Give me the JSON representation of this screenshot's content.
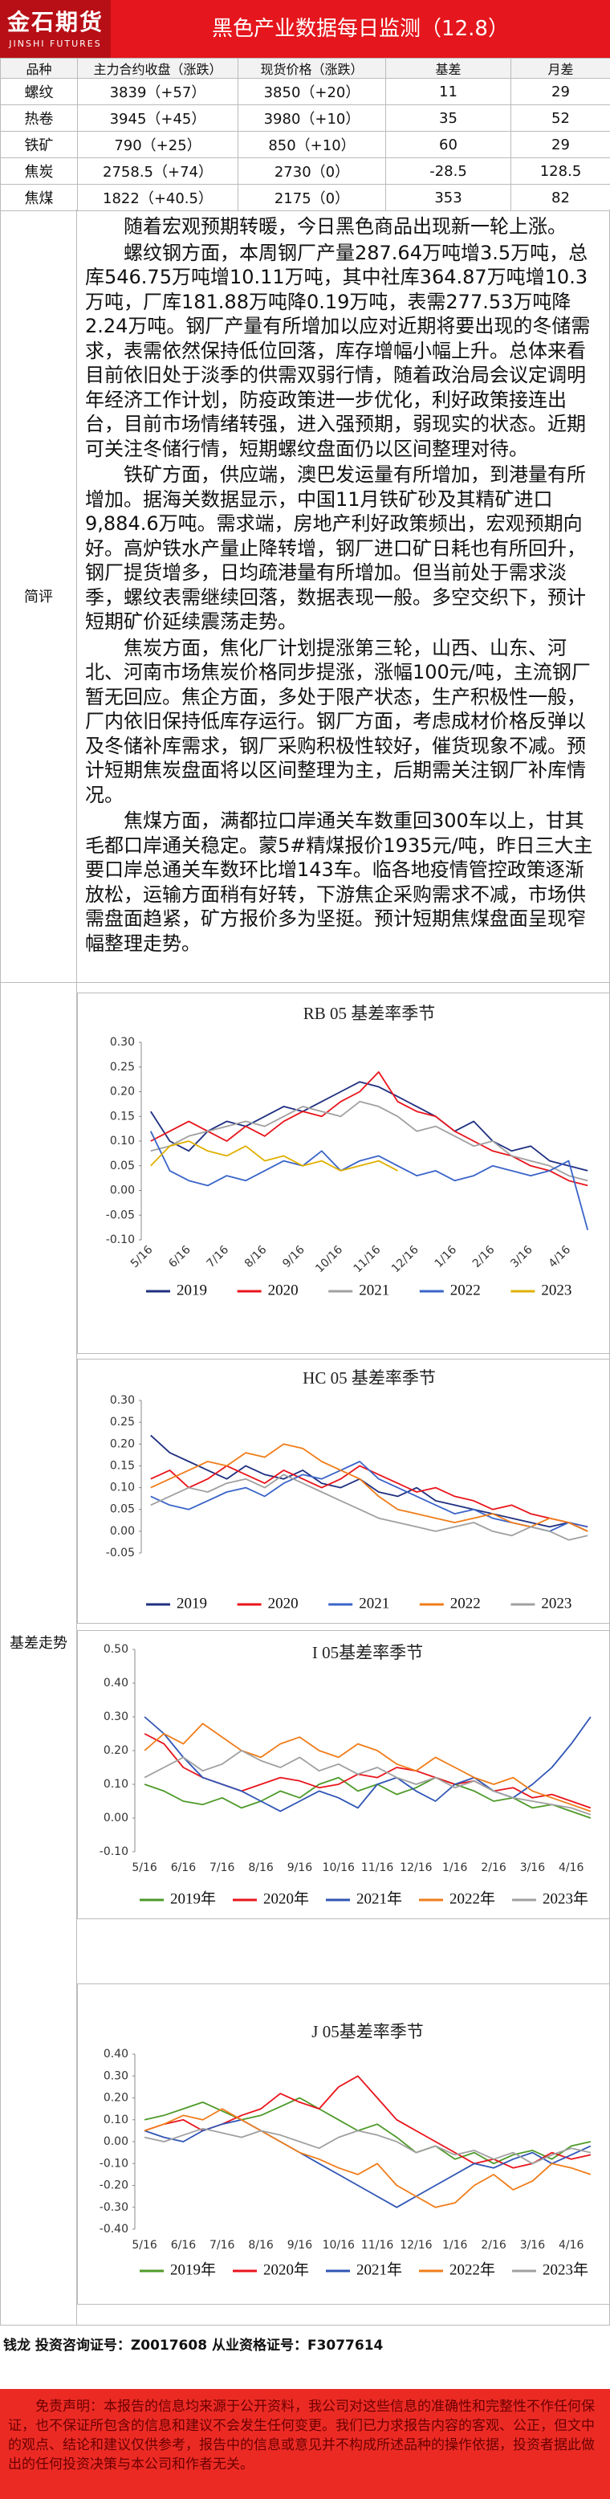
{
  "header": {
    "logo_cn": "金石期货",
    "logo_en": "JINSHI FUTURES",
    "title": "黑色产业数据每日监测（12.8）"
  },
  "table": {
    "columns": [
      "品种",
      "主力合约收盘（涨跌）",
      "现货价格（涨跌）",
      "基差",
      "月差"
    ],
    "rows": [
      [
        "螺纹",
        "3839（+57）",
        "3850（+20）",
        "11",
        "29"
      ],
      [
        "热卷",
        "3945（+45）",
        "3980（+10）",
        "35",
        "52"
      ],
      [
        "铁矿",
        "790（+25）",
        "850（+10）",
        "60",
        "29"
      ],
      [
        "焦炭",
        "2758.5（+74）",
        "2730（0）",
        "-28.5",
        "128.5"
      ],
      [
        "焦煤",
        "1822（+40.5）",
        "2175（0）",
        "353",
        "82"
      ]
    ]
  },
  "review": {
    "label": "简评",
    "paragraphs": [
      "随着宏观预期转暖，今日黑色商品出现新一轮上涨。",
      "螺纹钢方面，本周钢厂产量287.64万吨增3.5万吨，总库546.75万吨增10.11万吨，其中社库364.87万吨增10.3万吨，厂库181.88万吨降0.19万吨，表需277.53万吨降2.24万吨。钢厂产量有所增加以应对近期将要出现的冬储需求，表需依然保持低位回落，库存增幅小幅上升。总体来看目前依旧处于淡季的供需双弱行情，随着政治局会议定调明年经济工作计划，防疫政策进一步优化，利好政策接连出台，目前市场情绪转强，进入强预期，弱现实的状态。近期可关注冬储行情，短期螺纹盘面仍以区间整理对待。",
      "铁矿方面，供应端，澳巴发运量有所增加，到港量有所增加。据海关数据显示，中国11月铁矿砂及其精矿进口9,884.6万吨。需求端，房地产利好政策频出，宏观预期向好。高炉铁水产量止降转增，钢厂进口矿日耗也有所回升，钢厂提货增多，日均疏港量有所增加。但当前处于需求淡季，螺纹表需继续回落，数据表现一般。多空交织下，预计短期矿价延续震荡走势。",
      "焦炭方面，焦化厂计划提涨第三轮，山西、山东、河北、河南市场焦炭价格同步提涨，涨幅100元/吨，主流钢厂暂无回应。焦企方面，多处于限产状态，生产积极性一般，厂内依旧保持低库存运行。钢厂方面，考虑成材价格反弹以及冬储补库需求，钢厂采购积极性较好，催货现象不减。预计短期焦炭盘面将以区间整理为主，后期需关注钢厂补库情况。",
      "焦煤方面，满都拉口岸通关车数重回300车以上，甘其毛都口岸通关稳定。蒙5#精煤报价1935元/吨，昨日三大主要口岸总通关车数环比增143车。临各地疫情管控政策逐渐放松，运输方面稍有好转，下游焦企采购需求不减，市场供需盘面趋紧，矿方报价多为坚挺。预计短期焦煤盘面呈现窄幅整理走势。"
    ]
  },
  "basis_label": "基差走势",
  "chart_data": [
    {
      "type": "line",
      "title": "RB 05 基差率季节",
      "categories": [
        "5/16",
        null,
        "6/16",
        null,
        "7/16",
        null,
        "8/16",
        null,
        "9/16",
        null,
        "10/16",
        null,
        "11/16",
        null,
        "12/16",
        null,
        "1/16",
        null,
        "2/16",
        null,
        "3/16",
        null,
        "4/16",
        null
      ],
      "ylim": [
        -0.1,
        0.3
      ],
      "yticks": [
        {
          "value": 0.3,
          "label": "0.30"
        },
        0.25,
        {
          "value": 0.2,
          "label": "0.20"
        },
        0.15,
        {
          "value": 0.1,
          "label": "0.10"
        },
        0.05,
        {
          "value": 0,
          "label": "0.00"
        },
        -0.05,
        {
          "value": -0.1,
          "label": "-0.10"
        }
      ],
      "series": [
        {
          "name": "2019",
          "color": "#1f2f80",
          "values": [
            0.16,
            0.1,
            0.08,
            0.12,
            0.14,
            0.13,
            0.15,
            0.17,
            0.16,
            0.18,
            0.2,
            0.22,
            0.21,
            0.19,
            0.17,
            0.15,
            0.12,
            0.14,
            0.1,
            0.08,
            0.09,
            0.06,
            0.05,
            0.04
          ]
        },
        {
          "name": "2020",
          "color": "#e8141b",
          "values": [
            0.1,
            0.12,
            0.14,
            0.12,
            0.1,
            0.13,
            0.11,
            0.14,
            0.16,
            0.15,
            0.18,
            0.2,
            0.24,
            0.18,
            0.16,
            0.15,
            0.12,
            0.1,
            0.08,
            0.07,
            0.05,
            0.04,
            0.02,
            0.01
          ]
        },
        {
          "name": "2021",
          "color": "#a0a0a0",
          "values": [
            0.08,
            0.09,
            0.11,
            0.12,
            0.13,
            0.14,
            0.13,
            0.15,
            0.17,
            0.16,
            0.15,
            0.18,
            0.17,
            0.15,
            0.12,
            0.13,
            0.11,
            0.09,
            0.1,
            0.07,
            0.06,
            0.05,
            0.03,
            0.02
          ]
        },
        {
          "name": "2022",
          "color": "#3a64c8",
          "values": [
            0.12,
            0.04,
            0.02,
            0.01,
            0.03,
            0.02,
            0.04,
            0.06,
            0.05,
            0.08,
            0.04,
            0.06,
            0.07,
            0.05,
            0.03,
            0.04,
            0.02,
            0.03,
            0.05,
            0.04,
            0.03,
            0.04,
            0.06,
            -0.08
          ]
        },
        {
          "name": "2023",
          "color": "#e0b000",
          "values": [
            0.05,
            0.09,
            0.1,
            0.08,
            0.07,
            0.09,
            0.06,
            0.07,
            0.05,
            0.06,
            0.04,
            0.05,
            0.06,
            0.04,
            null,
            null,
            null,
            null,
            null,
            null,
            null,
            null,
            null,
            null
          ]
        }
      ]
    },
    {
      "type": "line",
      "title": "HC 05 基差率季节",
      "ylim": [
        -0.05,
        0.3
      ],
      "yticks": [
        {
          "value": 0.3,
          "label": "0.30"
        },
        0.25,
        {
          "value": 0.2,
          "label": "0.20"
        },
        0.15,
        {
          "value": 0.1,
          "label": "0.10"
        },
        0.05,
        {
          "value": 0,
          "label": "0.00"
        },
        -0.05
      ],
      "series": [
        {
          "name": "2019",
          "color": "#1f2f80",
          "values": [
            0.22,
            0.18,
            0.16,
            0.14,
            0.12,
            0.15,
            0.13,
            0.12,
            0.14,
            0.11,
            0.1,
            0.12,
            0.09,
            0.08,
            0.1,
            0.07,
            0.06,
            0.05,
            0.04,
            0.03,
            0.02,
            0.01,
            0.02,
            0.0
          ]
        },
        {
          "name": "2020",
          "color": "#e8141b",
          "values": [
            0.12,
            0.14,
            0.1,
            0.12,
            0.15,
            0.13,
            0.11,
            0.14,
            0.12,
            0.1,
            0.12,
            0.15,
            0.13,
            0.11,
            0.09,
            0.1,
            0.08,
            0.07,
            0.05,
            0.06,
            0.04,
            0.03,
            0.02,
            0.01
          ]
        },
        {
          "name": "2021",
          "color": "#3a64c8",
          "values": [
            0.08,
            0.06,
            0.05,
            0.07,
            0.09,
            0.1,
            0.08,
            0.11,
            0.13,
            0.12,
            0.14,
            0.16,
            0.12,
            0.1,
            0.08,
            0.06,
            0.04,
            0.05,
            0.03,
            0.02,
            0.01,
            0.0,
            0.02,
            0.01
          ]
        },
        {
          "name": "2022",
          "color": "#f07d1a",
          "values": [
            0.1,
            0.12,
            0.14,
            0.16,
            0.15,
            0.18,
            0.17,
            0.2,
            0.19,
            0.16,
            0.14,
            0.12,
            0.08,
            0.05,
            0.04,
            0.03,
            0.02,
            0.03,
            0.04,
            0.02,
            0.01,
            0.03,
            0.02,
            0.0
          ]
        },
        {
          "name": "2023",
          "color": "#a0a0a0",
          "values": [
            0.06,
            0.08,
            0.1,
            0.09,
            0.11,
            0.12,
            0.1,
            0.13,
            0.11,
            0.09,
            0.07,
            0.05,
            0.03,
            0.02,
            0.01,
            0.0,
            0.01,
            0.02,
            0.0,
            -0.01,
            0.01,
            0.0,
            -0.02,
            -0.01
          ]
        }
      ]
    },
    {
      "type": "line",
      "title": "I 05基差率季节",
      "categories": [
        "5/16",
        null,
        "6/16",
        null,
        "7/16",
        null,
        "8/16",
        null,
        "9/16",
        null,
        "10/16",
        null,
        "11/16",
        null,
        "12/16",
        null,
        "1/16",
        null,
        "2/16",
        null,
        "3/16",
        null,
        "4/16",
        null
      ],
      "ylim": [
        -0.1,
        0.5
      ],
      "yticks": [
        {
          "value": 0.5,
          "label": "0.50"
        },
        {
          "value": 0.4,
          "label": "0.40"
        },
        {
          "value": 0.3,
          "label": "0.30"
        },
        {
          "value": 0.2,
          "label": "0.20"
        },
        {
          "value": 0.1,
          "label": "0.10"
        },
        {
          "value": 0,
          "label": "0.00"
        },
        {
          "value": -0.1,
          "label": "-0.10"
        }
      ],
      "series": [
        {
          "name": "2019年",
          "color": "#4e9a2a",
          "values": [
            0.1,
            0.08,
            0.05,
            0.04,
            0.06,
            0.03,
            0.05,
            0.08,
            0.06,
            0.1,
            0.12,
            0.08,
            0.1,
            0.07,
            0.09,
            0.12,
            0.1,
            0.08,
            0.05,
            0.06,
            0.03,
            0.04,
            0.02,
            0.0
          ]
        },
        {
          "name": "2020年",
          "color": "#e8141b",
          "values": [
            0.25,
            0.22,
            0.15,
            0.12,
            0.1,
            0.08,
            0.1,
            0.12,
            0.11,
            0.09,
            0.1,
            0.13,
            0.12,
            0.15,
            0.14,
            0.12,
            0.1,
            0.11,
            0.08,
            0.09,
            0.06,
            0.07,
            0.05,
            0.03
          ]
        },
        {
          "name": "2021年",
          "color": "#2f55b5",
          "values": [
            0.3,
            0.25,
            0.18,
            0.12,
            0.1,
            0.08,
            0.05,
            0.02,
            0.05,
            0.08,
            0.06,
            0.03,
            0.1,
            0.12,
            0.08,
            0.05,
            0.1,
            0.12,
            0.08,
            0.06,
            0.1,
            0.15,
            0.22,
            0.3
          ]
        },
        {
          "name": "2022年",
          "color": "#f07d1a",
          "values": [
            0.2,
            0.25,
            0.22,
            0.28,
            0.24,
            0.2,
            0.18,
            0.22,
            0.24,
            0.2,
            0.18,
            0.22,
            0.2,
            0.16,
            0.14,
            0.18,
            0.15,
            0.12,
            0.1,
            0.12,
            0.08,
            0.06,
            0.04,
            0.02
          ]
        },
        {
          "name": "2023年",
          "color": "#a0a0a0",
          "values": [
            0.12,
            0.15,
            0.18,
            0.14,
            0.16,
            0.2,
            0.17,
            0.15,
            0.18,
            0.14,
            0.16,
            0.13,
            0.15,
            0.12,
            0.1,
            0.12,
            0.09,
            0.11,
            0.08,
            0.06,
            0.05,
            0.04,
            0.03,
            0.01
          ]
        }
      ]
    },
    {
      "type": "line",
      "title": "J 05基差率季节",
      "categories": [
        "5/16",
        null,
        "6/16",
        null,
        "7/16",
        null,
        "8/16",
        null,
        "9/16",
        null,
        "10/16",
        null,
        "11/16",
        null,
        "12/16",
        null,
        "1/16",
        null,
        "2/16",
        null,
        "3/16",
        null,
        "4/16",
        null
      ],
      "ylim": [
        -0.4,
        0.4
      ],
      "yticks": [
        {
          "value": 0.4,
          "label": "0.40"
        },
        {
          "value": 0.3,
          "label": "0.30"
        },
        {
          "value": 0.2,
          "label": "0.20"
        },
        {
          "value": 0.1,
          "label": "0.10"
        },
        {
          "value": 0,
          "label": "0.00"
        },
        {
          "value": -0.1,
          "label": "-0.10"
        },
        {
          "value": -0.2,
          "label": "-0.20"
        },
        {
          "value": -0.3,
          "label": "-0.30"
        },
        {
          "value": -0.4,
          "label": "-0.40"
        }
      ],
      "series": [
        {
          "name": "2019年",
          "color": "#4e9a2a",
          "values": [
            0.1,
            0.12,
            0.15,
            0.18,
            0.14,
            0.1,
            0.12,
            0.16,
            0.2,
            0.15,
            0.1,
            0.05,
            0.08,
            0.02,
            -0.05,
            -0.02,
            -0.08,
            -0.05,
            -0.1,
            -0.06,
            -0.04,
            -0.08,
            -0.02,
            0.0
          ]
        },
        {
          "name": "2020年",
          "color": "#e8141b",
          "values": [
            0.05,
            0.08,
            0.1,
            0.05,
            0.08,
            0.12,
            0.15,
            0.22,
            0.18,
            0.15,
            0.25,
            0.3,
            0.2,
            0.1,
            0.05,
            0.0,
            -0.05,
            -0.1,
            -0.08,
            -0.12,
            -0.1,
            -0.05,
            -0.08,
            -0.06
          ]
        },
        {
          "name": "2021年",
          "color": "#2f55b5",
          "values": [
            0.05,
            0.02,
            0.0,
            0.05,
            0.08,
            0.1,
            0.05,
            0.0,
            -0.05,
            -0.1,
            -0.15,
            -0.2,
            -0.25,
            -0.3,
            -0.25,
            -0.2,
            -0.15,
            -0.1,
            -0.12,
            -0.08,
            -0.05,
            -0.1,
            -0.06,
            -0.02
          ]
        },
        {
          "name": "2022年",
          "color": "#f07d1a",
          "values": [
            0.05,
            0.08,
            0.12,
            0.1,
            0.15,
            0.1,
            0.05,
            0.0,
            -0.05,
            -0.08,
            -0.12,
            -0.15,
            -0.1,
            -0.2,
            -0.25,
            -0.3,
            -0.28,
            -0.2,
            -0.15,
            -0.22,
            -0.18,
            -0.1,
            -0.12,
            -0.15
          ]
        },
        {
          "name": "2023年",
          "color": "#a0a0a0",
          "values": [
            0.02,
            0.0,
            0.03,
            0.06,
            0.04,
            0.02,
            0.05,
            0.03,
            0.0,
            -0.03,
            0.02,
            0.05,
            0.03,
            0.0,
            -0.05,
            -0.02,
            -0.06,
            -0.04,
            -0.08,
            -0.05,
            -0.1,
            -0.06,
            -0.03,
            -0.05
          ]
        }
      ]
    }
  ],
  "footer": {
    "analyst": "钱龙 投资咨询证号：Z0017608 从业资格证号：F3077614",
    "disclaimer": "免责声明：本报告的信息均来源于公开资料，我公司对这些信息的准确性和完整性不作任何保证，也不保证所包含的信息和建议不会发生任何变更。我们已力求报告内容的客观、公正，但文中的观点、结论和建议仅供参考，报告中的信息或意见并不构成所述品种的操作依据，投资者据此做出的任何投资决策与本公司和作者无关。"
  }
}
